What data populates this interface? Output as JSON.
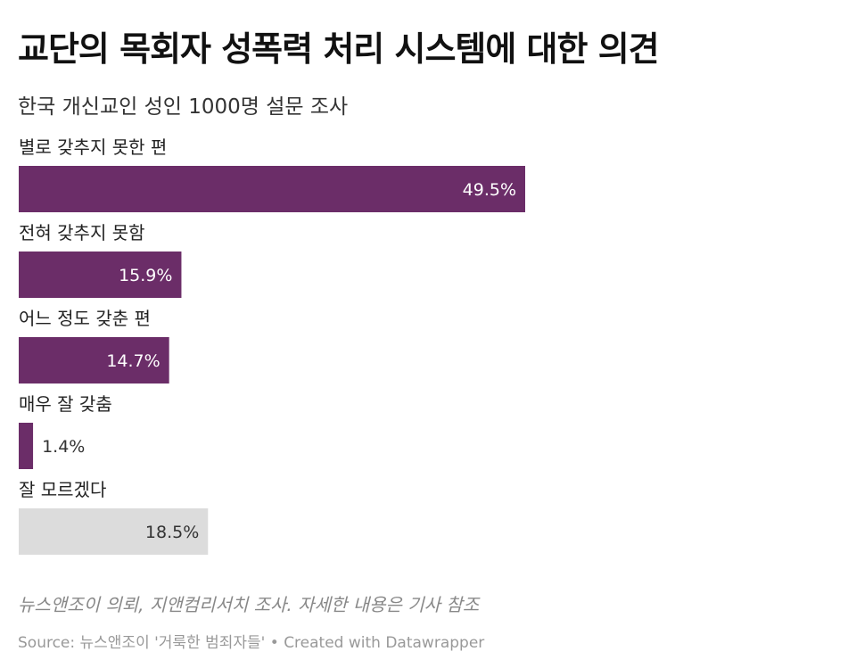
{
  "header": {
    "title": "교단의 목회자 성폭력 처리 시스템에 대한 의견",
    "subtitle": "한국 개신교인 성인 1000명 설문 조사"
  },
  "footer": {
    "note": "뉴스앤조이 의뢰, 지앤컴리서치 조사. 자세한 내용은 기사 참조",
    "source": "Source: 뉴스앤조이 '거룩한 범죄자들' • Created with Datawrapper"
  },
  "colors": {
    "primary_bar": "#6b2d68",
    "neutral_bar": "#dcdcdc",
    "label_on_dark": "#ffffff",
    "label_on_light": "#333333"
  },
  "chart_data": {
    "type": "bar",
    "orientation": "horizontal",
    "categories": [
      "별로 갖추지 못한 편",
      "전혀 갖추지 못함",
      "어느 정도 갖춘 편",
      "매우 잘 갖춤",
      "잘 모르겠다"
    ],
    "values": [
      49.5,
      15.9,
      14.7,
      1.4,
      18.5
    ],
    "value_labels": [
      "49.5%",
      "15.9%",
      "14.7%",
      "1.4%",
      "18.5%"
    ],
    "bar_colors": [
      "#6b2d68",
      "#6b2d68",
      "#6b2d68",
      "#6b2d68",
      "#dcdcdc"
    ],
    "unit": "%",
    "xlim": [
      0,
      49.5
    ],
    "grid": false,
    "legend": "none"
  }
}
